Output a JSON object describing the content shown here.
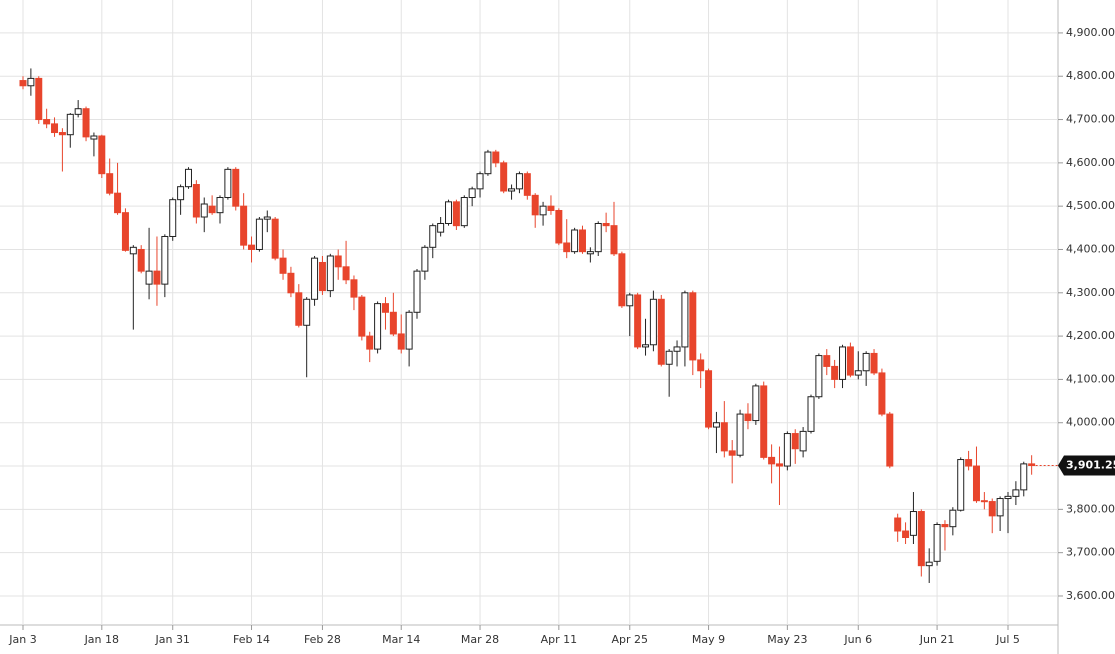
{
  "chart_data": {
    "type": "candlestick",
    "x": [
      "Jan 3",
      "Jan 4",
      "Jan 5",
      "Jan 6",
      "Jan 7",
      "Jan 10",
      "Jan 11",
      "Jan 12",
      "Jan 13",
      "Jan 14",
      "Jan 18",
      "Jan 19",
      "Jan 20",
      "Jan 21",
      "Jan 24",
      "Jan 25",
      "Jan 26",
      "Jan 27",
      "Jan 28",
      "Jan 31",
      "Feb 1",
      "Feb 2",
      "Feb 3",
      "Feb 4",
      "Feb 7",
      "Feb 8",
      "Feb 9",
      "Feb 10",
      "Feb 11",
      "Feb 14",
      "Feb 15",
      "Feb 16",
      "Feb 17",
      "Feb 18",
      "Feb 22",
      "Feb 23",
      "Feb 24",
      "Feb 25",
      "Feb 28",
      "Mar 1",
      "Mar 2",
      "Mar 3",
      "Mar 4",
      "Mar 7",
      "Mar 8",
      "Mar 9",
      "Mar 10",
      "Mar 11",
      "Mar 14",
      "Mar 15",
      "Mar 16",
      "Mar 17",
      "Mar 18",
      "Mar 21",
      "Mar 22",
      "Mar 23",
      "Mar 24",
      "Mar 25",
      "Mar 28",
      "Mar 29",
      "Mar 30",
      "Mar 31",
      "Apr 1",
      "Apr 4",
      "Apr 5",
      "Apr 6",
      "Apr 7",
      "Apr 8",
      "Apr 11",
      "Apr 12",
      "Apr 13",
      "Apr 14",
      "Apr 18",
      "Apr 19",
      "Apr 20",
      "Apr 21",
      "Apr 22",
      "Apr 25",
      "Apr 26",
      "Apr 27",
      "Apr 28",
      "Apr 29",
      "May 2",
      "May 3",
      "May 4",
      "May 5",
      "May 6",
      "May 9",
      "May 10",
      "May 11",
      "May 12",
      "May 13",
      "May 16",
      "May 17",
      "May 18",
      "May 19",
      "May 20",
      "May 23",
      "May 24",
      "May 25",
      "May 26",
      "May 27",
      "May 31",
      "Jun 1",
      "Jun 2",
      "Jun 3",
      "Jun 6",
      "Jun 7",
      "Jun 8",
      "Jun 9",
      "Jun 10",
      "Jun 13",
      "Jun 14",
      "Jun 15",
      "Jun 16",
      "Jun 17",
      "Jun 21",
      "Jun 22",
      "Jun 23",
      "Jun 24",
      "Jun 27",
      "Jun 28",
      "Jun 29",
      "Jun 30",
      "Jul 1",
      "Jul 5",
      "Jul 6",
      "Jul 7",
      "Jul 8"
    ],
    "open": [
      4790,
      4778,
      4795,
      4700,
      4690,
      4670,
      4665,
      4712,
      4725,
      4655,
      4662,
      4575,
      4530,
      4485,
      4390,
      4400,
      4320,
      4350,
      4320,
      4430,
      4515,
      4545,
      4550,
      4475,
      4500,
      4485,
      4520,
      4585,
      4500,
      4410,
      4400,
      4470,
      4470,
      4380,
      4345,
      4300,
      4225,
      4285,
      4370,
      4305,
      4385,
      4360,
      4330,
      4290,
      4200,
      4170,
      4275,
      4255,
      4205,
      4170,
      4255,
      4350,
      4405,
      4440,
      4460,
      4510,
      4455,
      4520,
      4540,
      4575,
      4625,
      4600,
      4535,
      4540,
      4575,
      4525,
      4480,
      4500,
      4490,
      4415,
      4395,
      4445,
      4390,
      4395,
      4460,
      4455,
      4390,
      4270,
      4295,
      4175,
      4180,
      4285,
      4135,
      4165,
      4175,
      4300,
      4145,
      4120,
      3990,
      4000,
      3935,
      3925,
      4020,
      4005,
      4085,
      3920,
      3905,
      3900,
      3975,
      3935,
      3980,
      4060,
      4155,
      4130,
      4100,
      4175,
      4110,
      4120,
      4160,
      4115,
      4020,
      3780,
      3750,
      3740,
      3795,
      3670,
      3680,
      3765,
      3760,
      3798,
      3915,
      3900,
      3820,
      3818,
      3785,
      3825,
      3830,
      3845,
      3905
    ],
    "high": [
      4800,
      4818,
      4800,
      4725,
      4705,
      4680,
      4715,
      4745,
      4730,
      4670,
      4665,
      4610,
      4600,
      4495,
      4410,
      4410,
      4450,
      4430,
      4435,
      4520,
      4550,
      4590,
      4560,
      4520,
      4525,
      4525,
      4590,
      4590,
      4530,
      4430,
      4475,
      4490,
      4475,
      4400,
      4360,
      4320,
      4290,
      4385,
      4385,
      4390,
      4400,
      4420,
      4340,
      4295,
      4210,
      4280,
      4290,
      4300,
      4250,
      4260,
      4355,
      4410,
      4460,
      4475,
      4515,
      4515,
      4525,
      4545,
      4580,
      4630,
      4630,
      4605,
      4550,
      4580,
      4580,
      4530,
      4510,
      4525,
      4495,
      4470,
      4450,
      4455,
      4405,
      4465,
      4485,
      4510,
      4395,
      4300,
      4300,
      4240,
      4305,
      4295,
      4170,
      4190,
      4305,
      4305,
      4160,
      4125,
      4025,
      4050,
      3960,
      4030,
      4045,
      4090,
      4095,
      3950,
      3945,
      3980,
      3985,
      3990,
      4065,
      4160,
      4170,
      4145,
      4180,
      4185,
      4165,
      4165,
      4170,
      4125,
      4025,
      3790,
      3770,
      3840,
      3800,
      3710,
      3770,
      3775,
      3805,
      3920,
      3935,
      3945,
      3840,
      3825,
      3830,
      3840,
      3865,
      3910,
      3925
    ],
    "low": [
      4770,
      4755,
      4690,
      4680,
      4660,
      4580,
      4635,
      4705,
      4650,
      4615,
      4565,
      4525,
      4480,
      4395,
      4215,
      4345,
      4285,
      4270,
      4290,
      4420,
      4480,
      4540,
      4460,
      4440,
      4480,
      4460,
      4515,
      4490,
      4400,
      4370,
      4395,
      4440,
      4375,
      4330,
      4290,
      4220,
      4105,
      4270,
      4295,
      4290,
      4330,
      4320,
      4260,
      4190,
      4140,
      4160,
      4215,
      4200,
      4160,
      4130,
      4240,
      4330,
      4380,
      4430,
      4455,
      4445,
      4450,
      4500,
      4520,
      4570,
      4590,
      4530,
      4515,
      4530,
      4515,
      4450,
      4455,
      4480,
      4410,
      4380,
      4390,
      4390,
      4370,
      4385,
      4440,
      4385,
      4265,
      4200,
      4170,
      4155,
      4165,
      4130,
      4060,
      4130,
      4130,
      4110,
      4080,
      3985,
      3930,
      3920,
      3860,
      3920,
      3985,
      3995,
      3915,
      3860,
      3810,
      3890,
      3905,
      3920,
      3975,
      4055,
      4110,
      4080,
      4080,
      4105,
      4100,
      4085,
      4110,
      4015,
      3895,
      3725,
      3720,
      3720,
      3645,
      3630,
      3670,
      3705,
      3740,
      3795,
      3890,
      3815,
      3800,
      3745,
      3750,
      3745,
      3810,
      3830,
      3880
    ],
    "close": [
      4778,
      4795,
      4700,
      4690,
      4670,
      4665,
      4712,
      4725,
      4660,
      4662,
      4575,
      4530,
      4485,
      4398,
      4405,
      4350,
      4350,
      4320,
      4430,
      4515,
      4545,
      4585,
      4475,
      4505,
      4485,
      4520,
      4585,
      4500,
      4410,
      4400,
      4470,
      4475,
      4380,
      4345,
      4300,
      4225,
      4285,
      4380,
      4305,
      4385,
      4360,
      4330,
      4290,
      4200,
      4170,
      4275,
      4255,
      4205,
      4170,
      4255,
      4350,
      4405,
      4455,
      4460,
      4510,
      4455,
      4520,
      4540,
      4575,
      4625,
      4600,
      4535,
      4540,
      4575,
      4525,
      4480,
      4500,
      4490,
      4415,
      4395,
      4445,
      4395,
      4395,
      4460,
      4455,
      4390,
      4270,
      4295,
      4175,
      4180,
      4285,
      4135,
      4165,
      4175,
      4300,
      4145,
      4120,
      3990,
      4000,
      3935,
      3925,
      4020,
      4005,
      4085,
      3920,
      3905,
      3900,
      3975,
      3940,
      3980,
      4060,
      4155,
      4130,
      4100,
      4175,
      4110,
      4120,
      4160,
      4115,
      4020,
      3900,
      3750,
      3735,
      3795,
      3670,
      3678,
      3765,
      3760,
      3798,
      3915,
      3900,
      3820,
      3818,
      3785,
      3825,
      3830,
      3845,
      3905,
      3901.25
    ],
    "up_color": "#ffffff",
    "down_color": "#e8452c",
    "ylim": [
      3533,
      4976
    ],
    "yticks": [
      {
        "value": 3600,
        "label": "3,600.00"
      },
      {
        "value": 3700,
        "label": "3,700.00"
      },
      {
        "value": 3800,
        "label": "3,800.00"
      },
      {
        "value": 3900,
        "label": "3,900.00"
      },
      {
        "value": 4000,
        "label": "4,000.00"
      },
      {
        "value": 4100,
        "label": "4,100.00"
      },
      {
        "value": 4200,
        "label": "4,200.00"
      },
      {
        "value": 4300,
        "label": "4,300.00"
      },
      {
        "value": 4400,
        "label": "4,400.00"
      },
      {
        "value": 4500,
        "label": "4,500.00"
      },
      {
        "value": 4600,
        "label": "4,600.00"
      },
      {
        "value": 4700,
        "label": "4,700.00"
      },
      {
        "value": 4800,
        "label": "4,800.00"
      },
      {
        "value": 4900,
        "label": "4,900.00"
      }
    ],
    "xticks": [
      "Jan 3",
      "Jan 18",
      "Jan 31",
      "Feb 14",
      "Feb 28",
      "Mar 14",
      "Mar 28",
      "Apr 11",
      "Apr 25",
      "May 9",
      "May 23",
      "Jun 6",
      "Jun 21",
      "Jul 5"
    ],
    "last_price": {
      "value": 3901.25,
      "label": "3,901.25"
    },
    "grid": true
  }
}
